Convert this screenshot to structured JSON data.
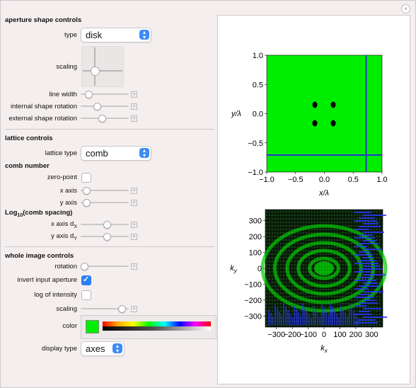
{
  "aperture": {
    "title": "aperture shape controls",
    "type_label": "type",
    "type_value": "disk",
    "scaling_label": "scaling",
    "line_width_label": "line width",
    "internal_rotation_label": "internal shape rotation",
    "external_rotation_label": "external shape rotation",
    "line_width_value": 0.1,
    "internal_rotation_value": 0.3,
    "external_rotation_value": 0.42
  },
  "lattice": {
    "title": "lattice controls",
    "type_label": "lattice type",
    "type_value": "comb",
    "comb_number_title": "comb number",
    "zero_point_label": "zero-point",
    "zero_point_checked": false,
    "x_axis_label": "x axis",
    "y_axis_label": "y axis",
    "x_axis_value": 0.05,
    "y_axis_value": 0.05,
    "spacing_title_prefix": "Log",
    "spacing_title_sub": "10",
    "spacing_title_suffix": "(comb spacing)",
    "x_axis_d_label": "x axis d",
    "x_axis_d_sub": "X",
    "y_axis_d_label": "y axis d",
    "y_axis_d_sub": "Y",
    "x_axis_d_value": 0.55,
    "y_axis_d_value": 0.55
  },
  "whole": {
    "title": "whole image controls",
    "rotation_label": "rotation",
    "rotation_value": 0.0,
    "invert_label": "invert input aperture",
    "invert_checked": true,
    "log_label": "log of intensity",
    "log_checked": false,
    "scaling_label": "scaling",
    "scaling_value": 0.9,
    "color_label": "color",
    "color_value": "#00ee00",
    "display_label": "display type",
    "display_value": "axes"
  },
  "plot_top": {
    "x_ticks": [
      "−1.0",
      "−0.5",
      "0.0",
      "0.5",
      "1.0"
    ],
    "y_ticks": [
      "−1.0",
      "−0.5",
      "0.0",
      "0.5",
      "1.0"
    ],
    "xlabel": "x/λ",
    "ylabel": "y/λ"
  },
  "plot_bottom": {
    "x_ticks": [
      "−300",
      "−200",
      "−100",
      "0",
      "100",
      "200",
      "300"
    ],
    "y_ticks": [
      "−300",
      "−200",
      "−100",
      "0",
      "100",
      "200",
      "300"
    ],
    "xlabel": "k",
    "xlabel_sub": "x",
    "ylabel": "k",
    "ylabel_sub": "y"
  },
  "colors": {
    "plot_green": "#00ee00",
    "line_blue": "#2a35c8",
    "accent": "#2d7ff5"
  }
}
